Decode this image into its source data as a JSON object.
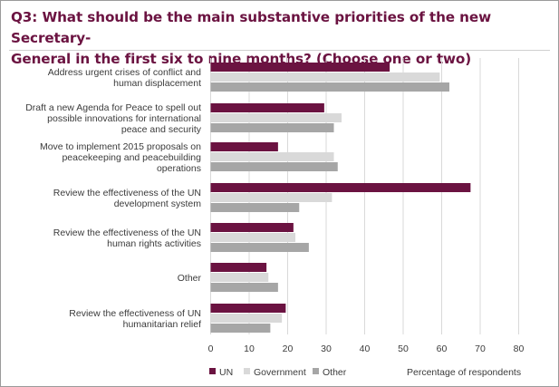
{
  "title": "Q3: What should be the main substantive priorities  of the new Secretary-\nGeneral in the first six to nine months? (Choose one or two)",
  "chart_data": {
    "type": "bar",
    "orientation": "horizontal",
    "categories": [
      "Address urgent crises of conflict and\nhuman displacement",
      "Draft a new Agenda for Peace to spell out\npossible innovations for international\npeace and security",
      "Move to implement 2015 proposals on\npeacekeeping and peacebuilding\noperations",
      "Review the effectiveness of the UN\ndevelopment system",
      "Review the effectiveness of the UN\nhuman rights activities",
      "Other",
      "Review the effectiveness of UN\nhumanitarian relief"
    ],
    "series": [
      {
        "name": "UN",
        "color": "#6b1341",
        "values": [
          46.5,
          29.5,
          17.5,
          67.5,
          21.5,
          14.5,
          19.5
        ]
      },
      {
        "name": "Government",
        "color": "#d9d9d9",
        "values": [
          59.5,
          34,
          32,
          31.5,
          22,
          15,
          18.5
        ]
      },
      {
        "name": "Other",
        "color": "#a6a6a6",
        "values": [
          62,
          32,
          33,
          23,
          25.5,
          17.5,
          15.5
        ]
      }
    ],
    "xlim": [
      0,
      80
    ],
    "xticks": [
      0,
      10,
      20,
      30,
      40,
      50,
      60,
      70,
      80
    ],
    "xlabel": "Percentage of respondents",
    "ylabel": "",
    "grid": "vertical",
    "legend": "bottom-left"
  }
}
